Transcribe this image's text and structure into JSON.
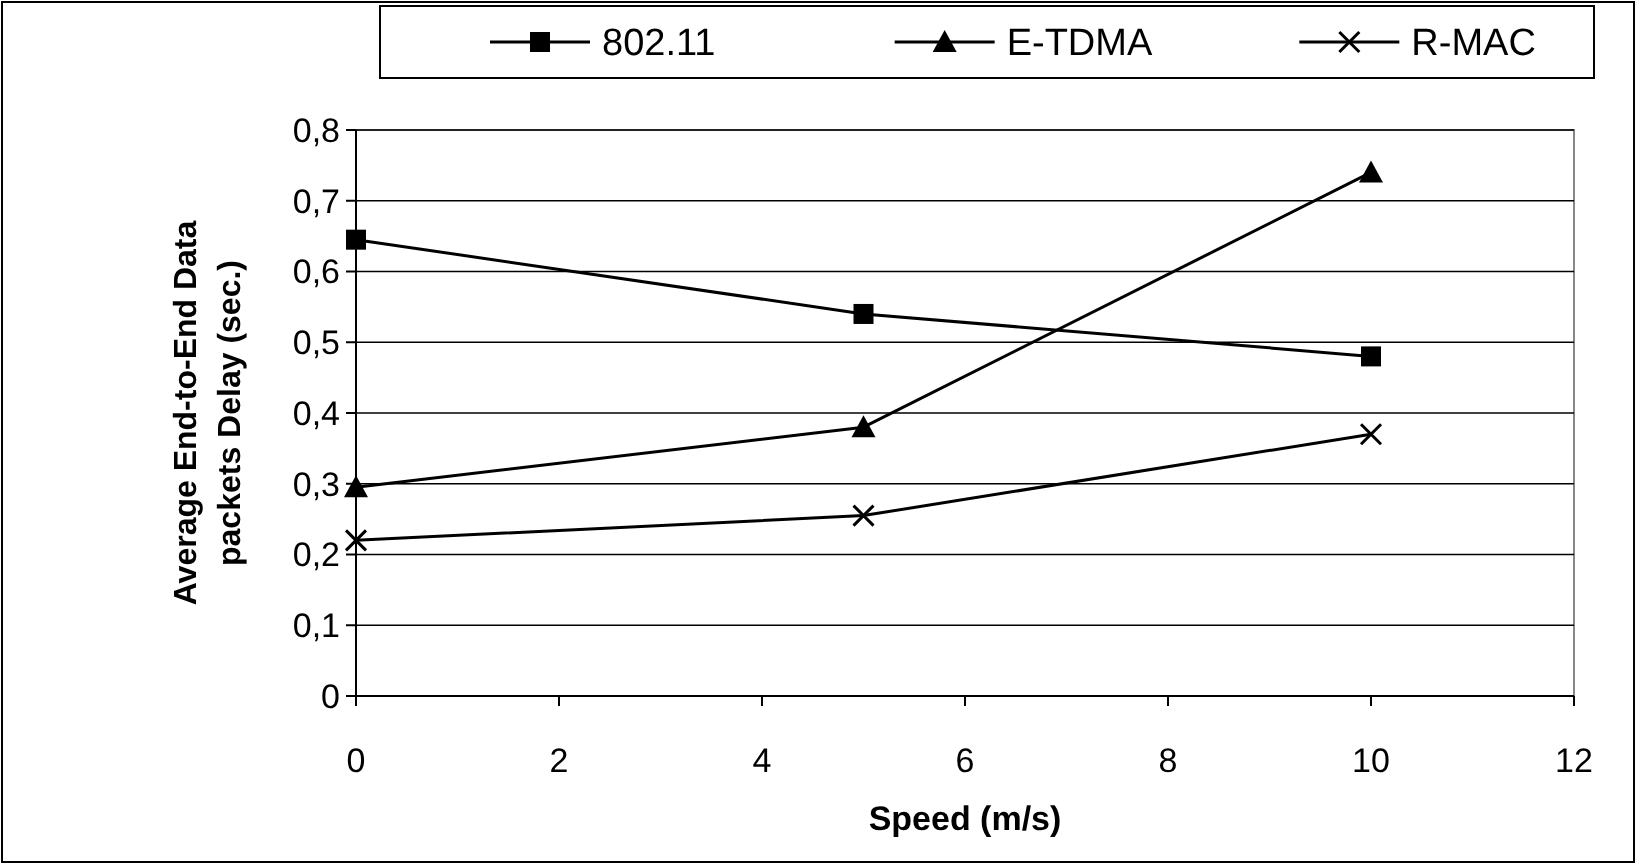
{
  "chart_data": {
    "type": "line",
    "xlabel": "Speed (m/s)",
    "ylabel": "Average End-to-End Data packets Delay (sec.)",
    "x": [
      0,
      5,
      10
    ],
    "series": [
      {
        "name": "802.11",
        "color": "#000000",
        "marker": "square",
        "values": [
          0.645,
          0.54,
          0.48
        ]
      },
      {
        "name": "E-TDMA",
        "color": "#000000",
        "marker": "triangle",
        "values": [
          0.295,
          0.38,
          0.74
        ]
      },
      {
        "name": "R-MAC",
        "color": "#000000",
        "marker": "cross",
        "values": [
          0.22,
          0.255,
          0.37
        ]
      }
    ],
    "xlim": [
      0,
      12
    ],
    "xticks": [
      0,
      2,
      4,
      6,
      8,
      10,
      12
    ],
    "ylim": [
      0,
      0.8
    ],
    "yticks": [
      {
        "value": 0,
        "label": "0"
      },
      {
        "value": 0.1,
        "label": "0,1"
      },
      {
        "value": 0.2,
        "label": "0,2"
      },
      {
        "value": 0.3,
        "label": "0,3"
      },
      {
        "value": 0.4,
        "label": "0,4"
      },
      {
        "value": 0.5,
        "label": "0,5"
      },
      {
        "value": 0.6,
        "label": "0,6"
      },
      {
        "value": 0.7,
        "label": "0,7"
      },
      {
        "value": 0.8,
        "label": "0,8"
      }
    ],
    "grid": "y",
    "legend": "top",
    "line_style": "solid"
  }
}
